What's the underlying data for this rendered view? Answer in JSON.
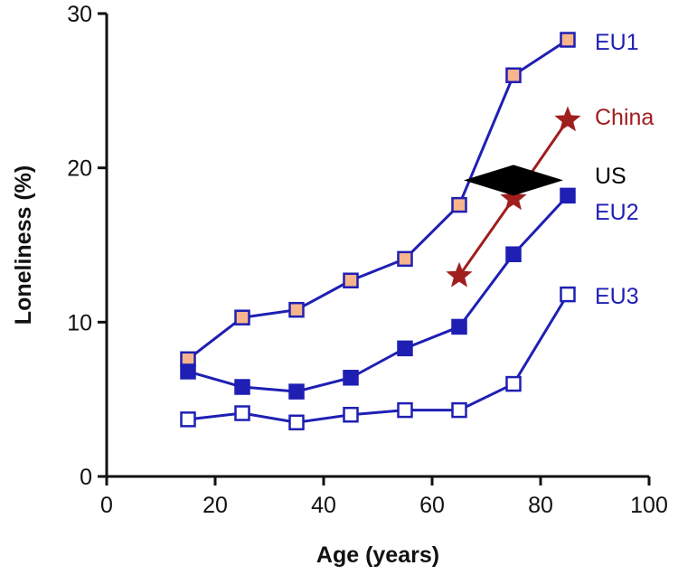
{
  "chart_data": {
    "type": "line",
    "xlabel": "Age (years)",
    "ylabel": "Loneliness (%)",
    "xlim": [
      0,
      100
    ],
    "ylim": [
      0,
      30
    ],
    "x_ticks": [
      "0",
      "20",
      "40",
      "60",
      "80",
      "100"
    ],
    "y_ticks": [
      "0",
      "10",
      "20",
      "30"
    ],
    "grid": false,
    "legend": "labels at end of each series",
    "series": [
      {
        "name": "EU1",
        "color": "#1f1fb4",
        "marker": "square-filled-peach",
        "marker_fill": "#f7b58c",
        "x": [
          15,
          25,
          35,
          45,
          55,
          65,
          75,
          85
        ],
        "y": [
          7.6,
          10.3,
          10.8,
          12.7,
          14.1,
          17.6,
          26.0,
          28.3
        ]
      },
      {
        "name": "China",
        "color": "#a01e1e",
        "marker": "star",
        "x": [
          65,
          75,
          85
        ],
        "y": [
          13.0,
          18.0,
          23.1
        ]
      },
      {
        "name": "US",
        "color": "#000000",
        "marker": "diamond",
        "x": [
          75
        ],
        "y": [
          19.2
        ]
      },
      {
        "name": "EU2",
        "color": "#1f1fb4",
        "marker": "square-filled",
        "marker_fill": "#1f1fb4",
        "x": [
          15,
          25,
          35,
          45,
          55,
          65,
          75,
          85
        ],
        "y": [
          6.8,
          5.8,
          5.5,
          6.4,
          8.3,
          9.7,
          14.4,
          18.2
        ]
      },
      {
        "name": "EU3",
        "color": "#1f1fb4",
        "marker": "square-open",
        "marker_fill": "#ffffff",
        "x": [
          15,
          25,
          35,
          45,
          55,
          65,
          75,
          85
        ],
        "y": [
          3.7,
          4.1,
          3.5,
          4.0,
          4.3,
          4.3,
          6.0,
          11.8
        ]
      }
    ]
  }
}
